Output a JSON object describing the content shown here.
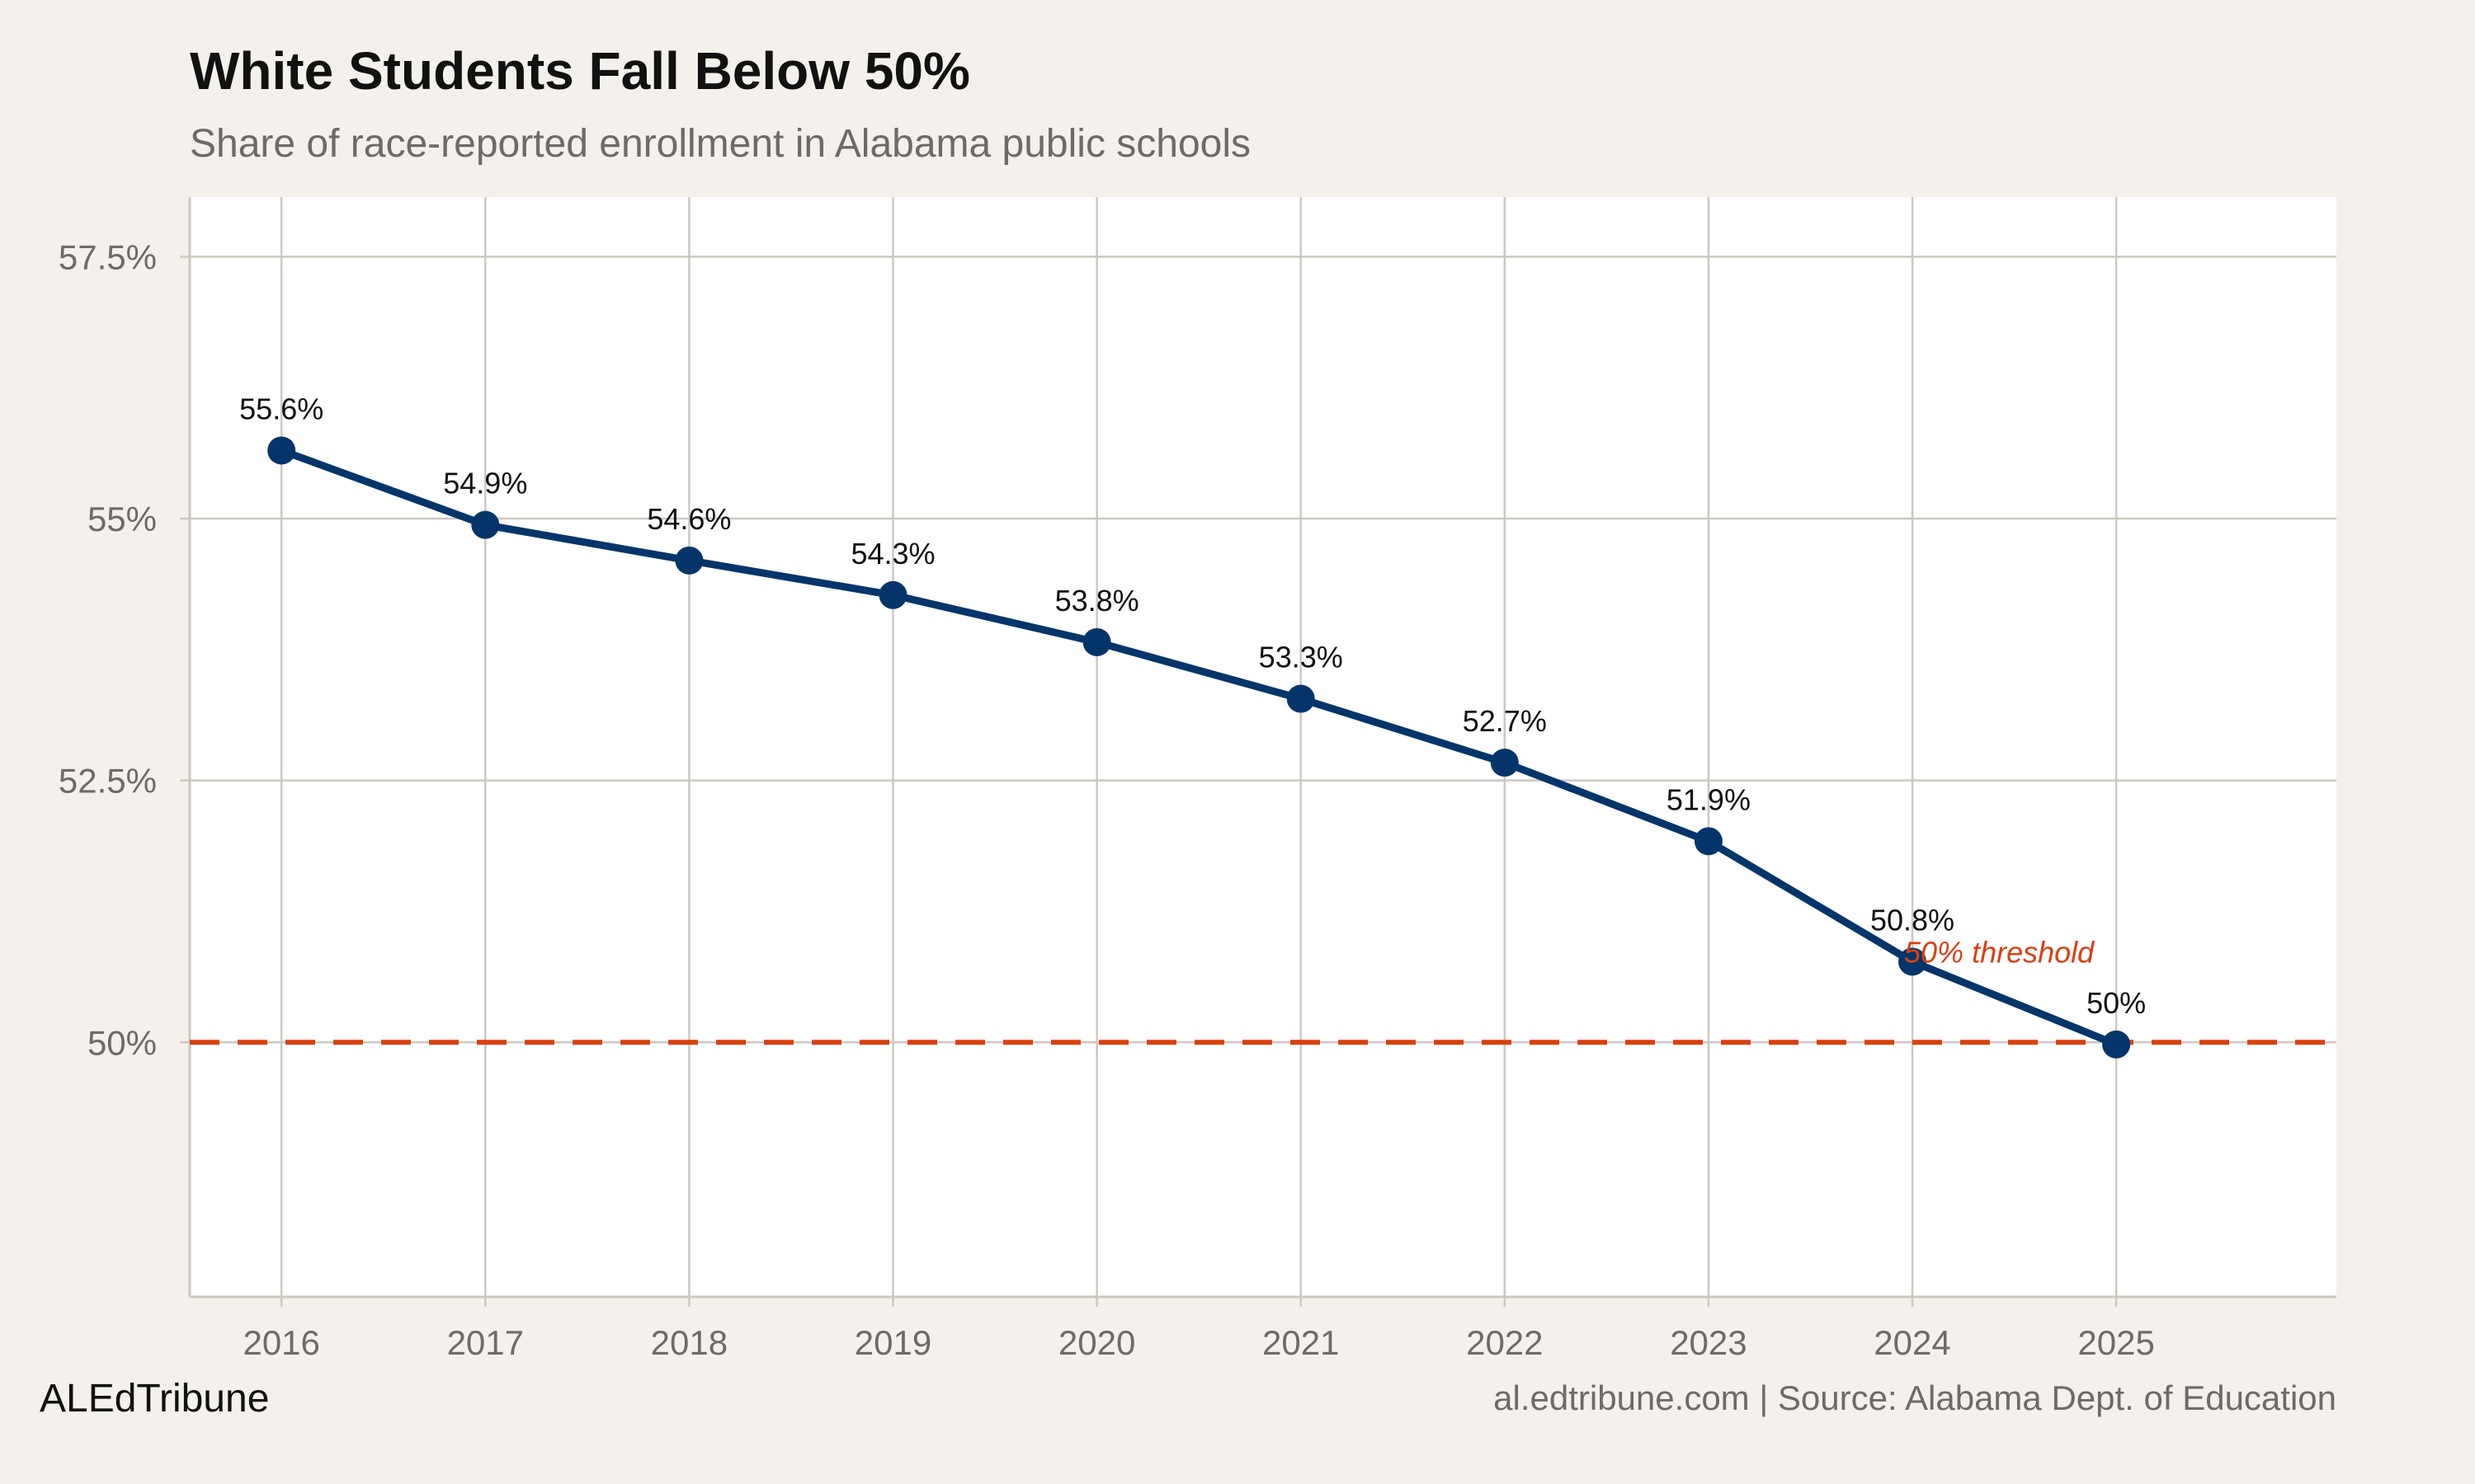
{
  "chart_data": {
    "type": "line",
    "title": "White Students Fall Below 50%",
    "subtitle": "Share of race-reported enrollment in Alabama public schools",
    "xlabel": "",
    "ylabel": "",
    "x": [
      2016,
      2017,
      2018,
      2019,
      2020,
      2021,
      2022,
      2023,
      2024,
      2025
    ],
    "x_tick_labels": [
      "2016",
      "2017",
      "2018",
      "2019",
      "2020",
      "2021",
      "2022",
      "2023",
      "2024",
      "2025"
    ],
    "values": [
      55.65,
      54.94,
      54.6,
      54.27,
      53.82,
      53.28,
      52.67,
      51.92,
      50.77,
      49.98
    ],
    "data_labels": [
      "55.6%",
      "54.9%",
      "54.6%",
      "54.3%",
      "53.8%",
      "53.3%",
      "52.7%",
      "51.9%",
      "50.8%",
      "50%"
    ],
    "y_ticks": [
      50,
      52.5,
      55,
      57.5
    ],
    "y_tick_labels": [
      "50%",
      "52.5%",
      "55%",
      "57.5%"
    ],
    "ylim": [
      47.57,
      58.07
    ],
    "xlim": [
      2015.55,
      2026.08
    ],
    "grid": true,
    "reference_line": {
      "value": 50,
      "label": "50% threshold",
      "style": "dashed"
    },
    "colors": {
      "line": "#04356a",
      "reference": "#d9400f",
      "background": "#f4f1ec",
      "panel": "#ffffff",
      "grid": "#cdc8c0"
    }
  },
  "footer": {
    "brand": "ALEdTribune",
    "source": "al.edtribune.com | Source: Alabama Dept. of Education"
  }
}
